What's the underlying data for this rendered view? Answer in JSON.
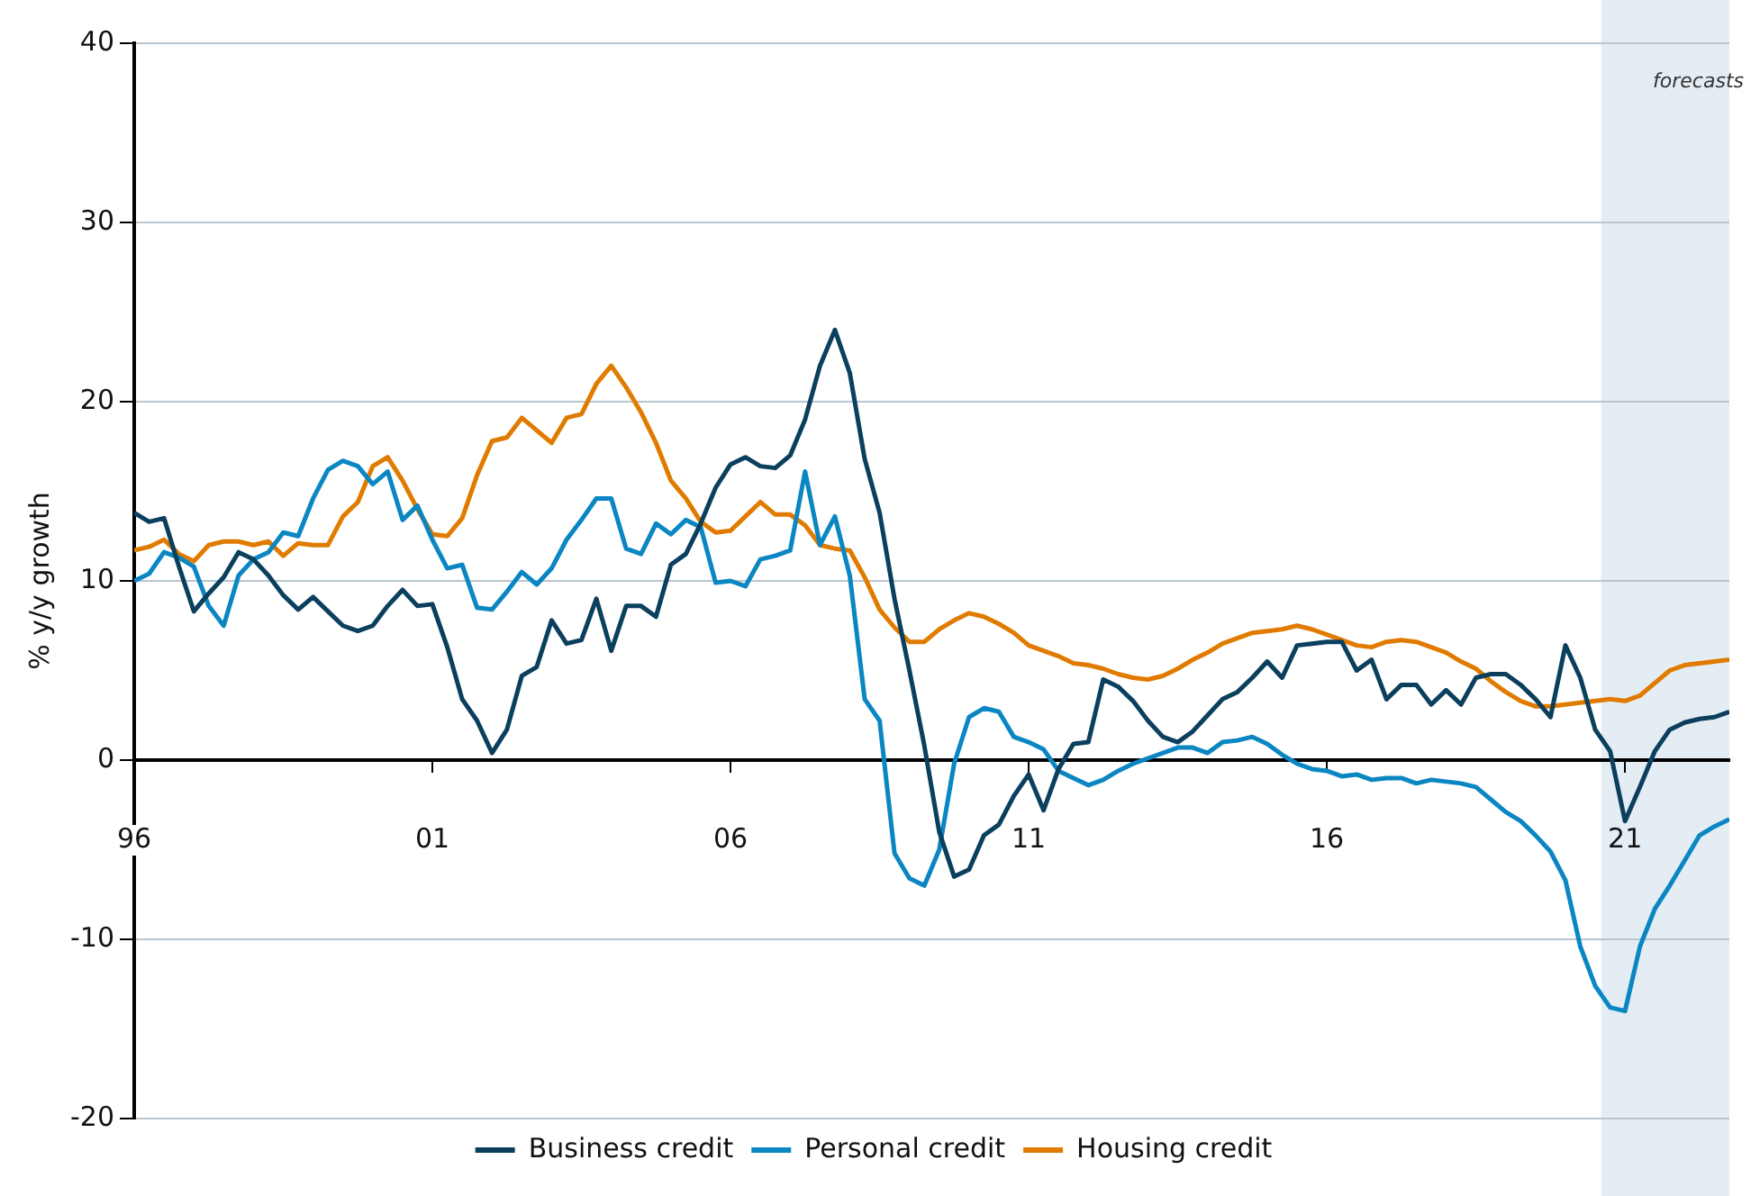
{
  "chart_data": {
    "type": "line",
    "ylabel": "% y/y growth",
    "x": [
      1996,
      1996.25,
      1996.5,
      1996.75,
      1997,
      1997.25,
      1997.5,
      1997.75,
      1998,
      1998.25,
      1998.5,
      1998.75,
      1999,
      1999.25,
      1999.5,
      1999.75,
      2000,
      2000.25,
      2000.5,
      2000.75,
      2001,
      2001.25,
      2001.5,
      2001.75,
      2002,
      2002.25,
      2002.5,
      2002.75,
      2003,
      2003.25,
      2003.5,
      2003.75,
      2004,
      2004.25,
      2004.5,
      2004.75,
      2005,
      2005.25,
      2005.5,
      2005.75,
      2006,
      2006.25,
      2006.5,
      2006.75,
      2007,
      2007.25,
      2007.5,
      2007.75,
      2008,
      2008.25,
      2008.5,
      2008.75,
      2009,
      2009.25,
      2009.5,
      2009.75,
      2010,
      2010.25,
      2010.5,
      2010.75,
      2011,
      2011.25,
      2011.5,
      2011.75,
      2012,
      2012.25,
      2012.5,
      2012.75,
      2013,
      2013.25,
      2013.5,
      2013.75,
      2014,
      2014.25,
      2014.5,
      2014.75,
      2015,
      2015.25,
      2015.5,
      2015.75,
      2016,
      2016.25,
      2016.5,
      2016.75,
      2017,
      2017.25,
      2017.5,
      2017.75,
      2018,
      2018.25,
      2018.5,
      2018.75,
      2019,
      2019.25,
      2019.5,
      2019.75,
      2020,
      2020.25,
      2020.5,
      2020.75,
      2021,
      2021.25,
      2021.5,
      2021.75,
      2022,
      2022.25,
      2022.5,
      2022.75
    ],
    "series": [
      {
        "name": "Business credit",
        "color": "#0b3f5e",
        "values": [
          13.8,
          13.3,
          13.5,
          10.8,
          8.3,
          9.3,
          10.2,
          11.6,
          11.2,
          10.3,
          9.2,
          8.4,
          9.1,
          8.3,
          7.5,
          7.2,
          7.5,
          8.6,
          9.5,
          8.6,
          8.7,
          6.3,
          3.4,
          2.2,
          0.4,
          1.7,
          4.7,
          5.2,
          7.8,
          6.5,
          6.7,
          9.0,
          6.1,
          8.6,
          8.6,
          8.0,
          10.9,
          11.5,
          13.2,
          15.2,
          16.5,
          16.9,
          16.4,
          16.3,
          17.0,
          19.0,
          22.0,
          24.0,
          21.6,
          16.8,
          13.8,
          9.0,
          5.0,
          0.8,
          -4.0,
          -6.5,
          -6.1,
          -4.2,
          -3.6,
          -2.0,
          -0.8,
          -2.8,
          -0.5,
          0.9,
          1.0,
          4.5,
          4.1,
          3.3,
          2.2,
          1.3,
          1.0,
          1.6,
          2.5,
          3.4,
          3.8,
          4.6,
          5.5,
          4.6,
          6.4,
          6.5,
          6.6,
          6.6,
          5.0,
          5.6,
          3.4,
          4.2,
          4.2,
          3.1,
          3.9,
          3.1,
          4.6,
          4.8,
          4.8,
          4.2,
          3.4,
          2.4,
          6.4,
          4.6,
          1.7,
          0.5,
          -3.4,
          -1.5,
          0.5,
          1.7,
          2.1,
          2.3,
          2.4,
          2.7
        ]
      },
      {
        "name": "Personal credit",
        "color": "#0a86c2",
        "values": [
          10.0,
          10.4,
          11.6,
          11.3,
          10.8,
          8.6,
          7.5,
          10.3,
          11.2,
          11.6,
          12.7,
          12.5,
          14.6,
          16.2,
          16.7,
          16.4,
          15.4,
          16.1,
          13.4,
          14.2,
          12.3,
          10.7,
          10.9,
          8.5,
          8.4,
          9.4,
          10.5,
          9.8,
          10.7,
          12.3,
          13.4,
          14.6,
          14.6,
          11.8,
          11.5,
          13.2,
          12.6,
          13.4,
          13.0,
          9.9,
          10.0,
          9.7,
          11.2,
          11.4,
          11.7,
          16.1,
          12.0,
          13.6,
          10.3,
          3.4,
          2.2,
          -5.2,
          -6.6,
          -7.0,
          -5.0,
          -0.2,
          2.4,
          2.9,
          2.7,
          1.3,
          1.0,
          0.6,
          -0.6,
          -1.0,
          -1.4,
          -1.1,
          -0.6,
          -0.2,
          0.1,
          0.4,
          0.7,
          0.7,
          0.4,
          1.0,
          1.1,
          1.3,
          0.9,
          0.3,
          -0.2,
          -0.5,
          -0.6,
          -0.9,
          -0.8,
          -1.1,
          -1.0,
          -1.0,
          -1.3,
          -1.1,
          -1.2,
          -1.3,
          -1.5,
          -2.2,
          -2.9,
          -3.4,
          -4.2,
          -5.1,
          -6.7,
          -10.4,
          -12.6,
          -13.8,
          -14.0,
          -10.4,
          -8.3,
          -7.0,
          -5.6,
          -4.2,
          -3.7,
          -3.3
        ]
      },
      {
        "name": "Housing credit",
        "color": "#e07b00",
        "values": [
          11.7,
          11.9,
          12.3,
          11.5,
          11.1,
          12.0,
          12.2,
          12.2,
          12.0,
          12.2,
          11.4,
          12.1,
          12.0,
          12.0,
          13.6,
          14.4,
          16.4,
          16.9,
          15.6,
          14.0,
          12.6,
          12.5,
          13.5,
          15.9,
          17.8,
          18.0,
          19.1,
          18.4,
          17.7,
          19.1,
          19.3,
          21.0,
          22.0,
          20.8,
          19.4,
          17.7,
          15.6,
          14.6,
          13.3,
          12.7,
          12.8,
          13.6,
          14.4,
          13.7,
          13.7,
          13.1,
          12.0,
          11.8,
          11.7,
          10.2,
          8.4,
          7.4,
          6.6,
          6.6,
          7.3,
          7.8,
          8.2,
          8.0,
          7.6,
          7.1,
          6.4,
          6.1,
          5.8,
          5.4,
          5.3,
          5.1,
          4.8,
          4.6,
          4.5,
          4.7,
          5.1,
          5.6,
          6.0,
          6.5,
          6.8,
          7.1,
          7.2,
          7.3,
          7.5,
          7.3,
          7.0,
          6.7,
          6.4,
          6.3,
          6.6,
          6.7,
          6.6,
          6.3,
          6.0,
          5.5,
          5.1,
          4.4,
          3.8,
          3.3,
          3.0,
          3.0,
          3.1,
          3.2,
          3.3,
          3.4,
          3.3,
          3.6,
          4.3,
          5.0,
          5.3,
          5.4,
          5.5,
          5.6
        ]
      }
    ],
    "xlim": [
      1996,
      2022.75
    ],
    "xticks": [
      {
        "value": 1996,
        "label": "96"
      },
      {
        "value": 2001,
        "label": "01"
      },
      {
        "value": 2006,
        "label": "06"
      },
      {
        "value": 2011,
        "label": "11"
      },
      {
        "value": 2016,
        "label": "16"
      },
      {
        "value": 2021,
        "label": "21"
      }
    ],
    "ylim": [
      -20,
      40
    ],
    "yticks": [
      -20,
      -10,
      0,
      10,
      20,
      30,
      40
    ],
    "bands": [
      {
        "axis": "x",
        "from": 2020.6,
        "to": 2022.75,
        "label": "forecasts",
        "color": "#e4edf4"
      }
    ],
    "grid": "y",
    "legend": "bottom",
    "marker": "none",
    "line_style": "solid"
  }
}
